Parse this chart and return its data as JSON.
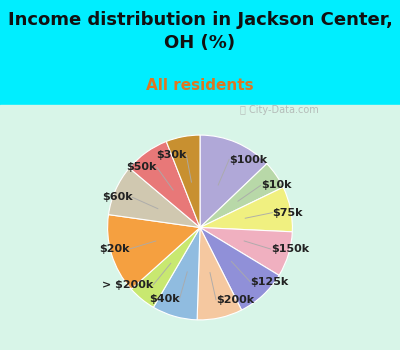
{
  "title": "Income distribution in Jackson Center,\nOH (%)",
  "subtitle": "All residents",
  "labels": [
    "$100k",
    "$10k",
    "$75k",
    "$150k",
    "$125k",
    "$200k",
    "$40k",
    "> $200k",
    "$20k",
    "$60k",
    "$50k",
    "$30k"
  ],
  "values": [
    13,
    5,
    8,
    8,
    9,
    8,
    8,
    5,
    14,
    9,
    8,
    6
  ],
  "colors": [
    "#b0a8d8",
    "#b8d8a8",
    "#f0f080",
    "#f0b0c0",
    "#9090d8",
    "#f5c8a0",
    "#90bce0",
    "#c8e870",
    "#f5a040",
    "#d0c8b0",
    "#e87878",
    "#c89030"
  ],
  "title_fontsize": 13,
  "subtitle_fontsize": 11,
  "subtitle_color": "#dd7722",
  "title_color": "#111111",
  "bg_top_color": "#00eeff",
  "bg_bottom_color": "#d8f5e8",
  "watermark": "  City-Data.com",
  "label_fontsize": 8,
  "label_color": "#222222",
  "line_color": "#aaaaaa"
}
